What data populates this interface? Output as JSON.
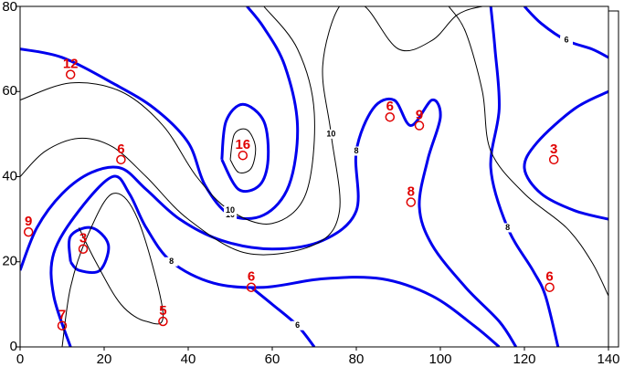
{
  "chart_data": {
    "type": "contour",
    "xlim": [
      0,
      140
    ],
    "ylim": [
      0,
      80
    ],
    "xticks": [
      0,
      20,
      40,
      60,
      80,
      100,
      120,
      140
    ],
    "yticks": [
      0,
      20,
      40,
      60,
      80
    ],
    "points": {
      "color": "#e00000",
      "x": [
        12,
        53,
        24,
        88,
        95,
        127,
        93,
        2,
        15,
        55,
        126,
        10,
        34
      ],
      "y": [
        64,
        45,
        44,
        54,
        52,
        44,
        34,
        27,
        23,
        14,
        14,
        5,
        6
      ],
      "values": [
        12,
        16,
        6,
        6,
        9,
        3,
        8,
        9,
        3,
        6,
        6,
        7,
        5
      ]
    },
    "contours": [
      {
        "color": "#0000ee",
        "width": 3,
        "x": [
          48,
          49,
          53,
          58,
          59,
          57,
          52,
          48
        ],
        "y": [
          44,
          53,
          57,
          53,
          44,
          38,
          37,
          44
        ]
      },
      {
        "color": "#000000",
        "width": 1,
        "x": [
          50,
          51,
          54,
          56,
          55,
          52,
          50
        ],
        "y": [
          44,
          50,
          51,
          47,
          42,
          41,
          44
        ]
      },
      {
        "color": "#0000ee",
        "width": 3,
        "level": 10,
        "x": [
          0,
          10,
          22,
          32,
          40,
          44,
          50,
          58,
          64,
          66,
          63,
          58,
          54
        ],
        "y": [
          70,
          68,
          62,
          56,
          48,
          38,
          31,
          31,
          38,
          52,
          66,
          75,
          80
        ]
      },
      {
        "color": "#000000",
        "width": 1,
        "level": 10,
        "x": [
          0,
          12,
          24,
          34,
          42,
          50,
          60,
          68,
          70,
          66,
          58
        ],
        "y": [
          58,
          62,
          60,
          52,
          40,
          32,
          29,
          36,
          55,
          70,
          80
        ]
      },
      {
        "color": "#0000ee",
        "width": 3,
        "level": 8,
        "x": [
          0,
          4,
          10,
          17,
          24,
          30,
          38,
          48,
          60,
          72,
          80,
          80,
          84,
          89,
          93,
          98,
          100,
          97,
          95,
          98,
          106,
          114,
          118
        ],
        "y": [
          18,
          28,
          36,
          41,
          42,
          37,
          30,
          25,
          23,
          25,
          32,
          46,
          56,
          58,
          52,
          58,
          54,
          44,
          33,
          24,
          14,
          6,
          0
        ]
      },
      {
        "color": "#000000",
        "width": 1,
        "level": 10,
        "x": [
          0,
          6,
          14,
          22,
          30,
          40,
          54,
          70,
          76,
          74,
          72,
          76,
          82,
          90,
          98,
          104,
          110,
          114
        ],
        "y": [
          40,
          46,
          49,
          47,
          40,
          30,
          22,
          24,
          32,
          50,
          66,
          80,
          80,
          70,
          72,
          78,
          80,
          80
        ]
      },
      {
        "color": "#0000ee",
        "width": 3,
        "x": [
          12,
          12,
          17,
          21,
          19,
          14,
          12
        ],
        "y": [
          20,
          26,
          28,
          24,
          18,
          18,
          20
        ]
      },
      {
        "color": "#0000ee",
        "width": 3,
        "level": 8,
        "x": [
          12,
          8,
          8,
          14,
          22,
          26,
          30,
          36,
          46,
          58,
          72,
          86,
          98,
          108,
          114
        ],
        "y": [
          0,
          12,
          22,
          32,
          40,
          36,
          28,
          20,
          15,
          14,
          16,
          16,
          12,
          5,
          0
        ]
      },
      {
        "color": "#000000",
        "width": 1,
        "x": [
          10,
          12,
          16,
          22,
          28,
          34,
          30,
          24,
          18,
          14
        ],
        "y": [
          0,
          14,
          26,
          36,
          30,
          8,
          6,
          10,
          20,
          28
        ]
      },
      {
        "color": "#0000ee",
        "width": 3,
        "level": 6,
        "x": [
          55,
          60,
          66,
          70
        ],
        "y": [
          14,
          10,
          5,
          0
        ]
      },
      {
        "color": "#0000ee",
        "width": 3,
        "x": [
          140,
          132,
          123,
          120,
          124,
          132,
          140
        ],
        "y": [
          60,
          56,
          48,
          42,
          36,
          32,
          30
        ]
      },
      {
        "color": "#0000ee",
        "width": 3,
        "level": 8,
        "x": [
          112,
          113,
          114,
          112,
          116,
          122,
          125,
          128
        ],
        "y": [
          80,
          70,
          56,
          42,
          28,
          18,
          12,
          0
        ]
      },
      {
        "color": "#000000",
        "width": 1,
        "x": [
          102,
          106,
          110,
          112,
          120,
          130,
          136,
          140
        ],
        "y": [
          80,
          74,
          60,
          46,
          36,
          28,
          20,
          12
        ]
      },
      {
        "color": "#0000ee",
        "width": 3,
        "level": 6,
        "x": [
          120,
          124,
          130,
          136,
          140
        ],
        "y": [
          80,
          76,
          72,
          70,
          68
        ]
      }
    ]
  }
}
